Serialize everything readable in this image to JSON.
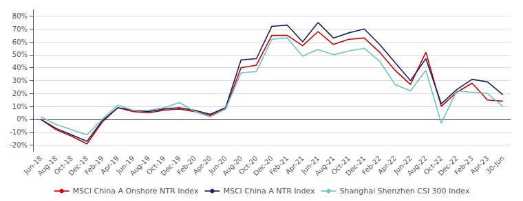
{
  "chart_data": {
    "type": "line",
    "categories": [
      "Jun-18",
      "Aug-18",
      "Oct-18",
      "Dec-18",
      "Feb-19",
      "Apr-19",
      "Jun-19",
      "Aug-19",
      "Oct-19",
      "Dec-19",
      "Feb-20",
      "Apr-20",
      "Jun-20",
      "Aug-20",
      "Oct-20",
      "Dec-20",
      "Feb-21",
      "Apr-21",
      "Jun-21",
      "Aug-21",
      "Oct-21",
      "Dec-21",
      "Feb-22",
      "Apr-22",
      "Jun-22",
      "Aug-22",
      "Oct-22",
      "Dec-22",
      "Feb-23",
      "Apr-23",
      "30-Jun"
    ],
    "series": [
      {
        "name": "MSCI China A Onshore NTR Index",
        "color": "#cc0000",
        "values": [
          0,
          -8,
          -13,
          -19,
          -2,
          9,
          6,
          5,
          7,
          8,
          6,
          3,
          8,
          40,
          42,
          65,
          65,
          57,
          68,
          58,
          62,
          63,
          52,
          38,
          27,
          52,
          10,
          21,
          28,
          15,
          14
        ]
      },
      {
        "name": "MSCI China A NTR Index",
        "color": "#1a2060",
        "values": [
          0,
          -7,
          -12,
          -17,
          -1,
          9,
          7,
          6,
          8,
          9,
          7,
          4,
          9,
          46,
          47,
          72,
          73,
          60,
          75,
          63,
          67,
          70,
          58,
          44,
          30,
          47,
          12,
          23,
          31,
          29,
          19
        ]
      },
      {
        "name": "Shanghai Shenzhen CSI 300 Index",
        "color": "#70c4bc",
        "values": [
          2,
          -4,
          -8,
          -12,
          0,
          11,
          7,
          7,
          9,
          13,
          6,
          2,
          8,
          36,
          37,
          62,
          63,
          49,
          54,
          50,
          53,
          55,
          45,
          27,
          22,
          38,
          -3,
          22,
          21,
          20,
          10
        ]
      }
    ],
    "ylim": [
      -25,
      85
    ],
    "yticks": [
      {
        "value": -20,
        "label": "-20%"
      },
      {
        "value": -10,
        "label": "-10%"
      },
      {
        "value": 0,
        "label": "0%"
      },
      {
        "value": 10,
        "label": "10%"
      },
      {
        "value": 20,
        "label": "20%"
      },
      {
        "value": 30,
        "label": "30%"
      },
      {
        "value": 40,
        "label": "40%"
      },
      {
        "value": 50,
        "label": "50%"
      },
      {
        "value": 60,
        "label": "60%"
      },
      {
        "value": 70,
        "label": "70%"
      },
      {
        "value": 80,
        "label": "80%"
      }
    ],
    "grid": true,
    "legend": "bottom"
  }
}
